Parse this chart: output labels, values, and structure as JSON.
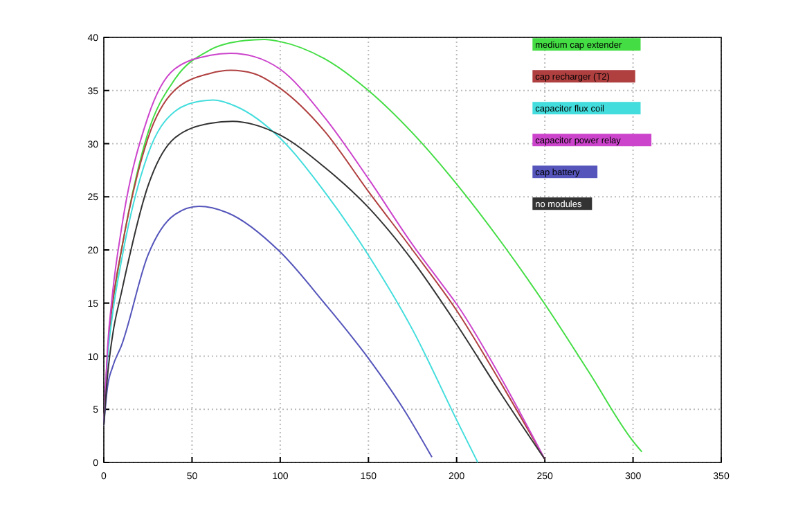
{
  "chart_data": {
    "type": "line",
    "xlim": [
      0,
      350
    ],
    "ylim": [
      0,
      40
    ],
    "xticks": [
      0,
      50,
      100,
      150,
      200,
      250,
      300,
      350
    ],
    "yticks": [
      0,
      5,
      10,
      15,
      20,
      25,
      30,
      35,
      40
    ],
    "grid": true,
    "legend": "top right",
    "line_style": "solid",
    "marker": "none",
    "series": [
      {
        "name": "medium cap extender",
        "color": "#44dd44",
        "x": [
          5,
          10,
          25,
          40,
          60,
          80,
          91,
          100,
          125,
          150,
          175,
          200,
          225,
          250,
          275,
          300,
          305
        ],
        "values": [
          15,
          20,
          31,
          36,
          38.8,
          39.7,
          39.8,
          39.6,
          38,
          35,
          31,
          26.2,
          20.8,
          14.9,
          8.5,
          2,
          1
        ]
      },
      {
        "name": "cap recharger (T2)",
        "color": "#b04040",
        "x": [
          0,
          2,
          5,
          10,
          25,
          40,
          60,
          72,
          85,
          100,
          125,
          150,
          175,
          200,
          225,
          250
        ],
        "values": [
          3.5,
          10,
          15,
          20,
          30.5,
          35,
          36.6,
          36.9,
          36.6,
          35.2,
          31.2,
          25.5,
          20,
          14.3,
          7.5,
          0.3
        ]
      },
      {
        "name": "capacitor flux coil",
        "color": "#44dddd",
        "x": [
          0,
          2,
          5,
          10,
          25,
          40,
          55,
          62,
          75,
          100,
          125,
          150,
          175,
          200,
          212
        ],
        "values": [
          3.5,
          9.5,
          14,
          19,
          29,
          33,
          34,
          34.1,
          33.5,
          30.5,
          25.5,
          19.5,
          12.5,
          4,
          0
        ]
      },
      {
        "name": "capacitor power relay",
        "color": "#cc44cc",
        "x": [
          0,
          2,
          5,
          10,
          25,
          40,
          60,
          72,
          85,
          100,
          125,
          150,
          175,
          192,
          200,
          225,
          250
        ],
        "values": [
          3.5,
          10.5,
          16,
          22,
          32.5,
          37,
          38.3,
          38.5,
          38.2,
          37,
          32.5,
          26.7,
          20.5,
          16.7,
          14.9,
          8,
          0.3
        ]
      },
      {
        "name": "cap battery",
        "color": "#5555bb",
        "x": [
          0,
          2,
          5,
          10,
          25,
          40,
          54,
          70,
          100,
          125,
          150,
          170,
          186
        ],
        "values": [
          3.5,
          7,
          9,
          11,
          19.5,
          23.3,
          24.1,
          23.5,
          19.8,
          15,
          9.8,
          5,
          0.5
        ]
      },
      {
        "name": "no modules",
        "color": "#333333",
        "x": [
          0,
          2,
          5,
          10,
          25,
          40,
          60,
          73,
          85,
          100,
          125,
          150,
          175,
          200,
          225,
          250
        ],
        "values": [
          3.5,
          8,
          12,
          16,
          26,
          30.5,
          31.9,
          32.1,
          31.8,
          30.8,
          27.8,
          24,
          19,
          13,
          6.5,
          0.3
        ]
      }
    ]
  }
}
